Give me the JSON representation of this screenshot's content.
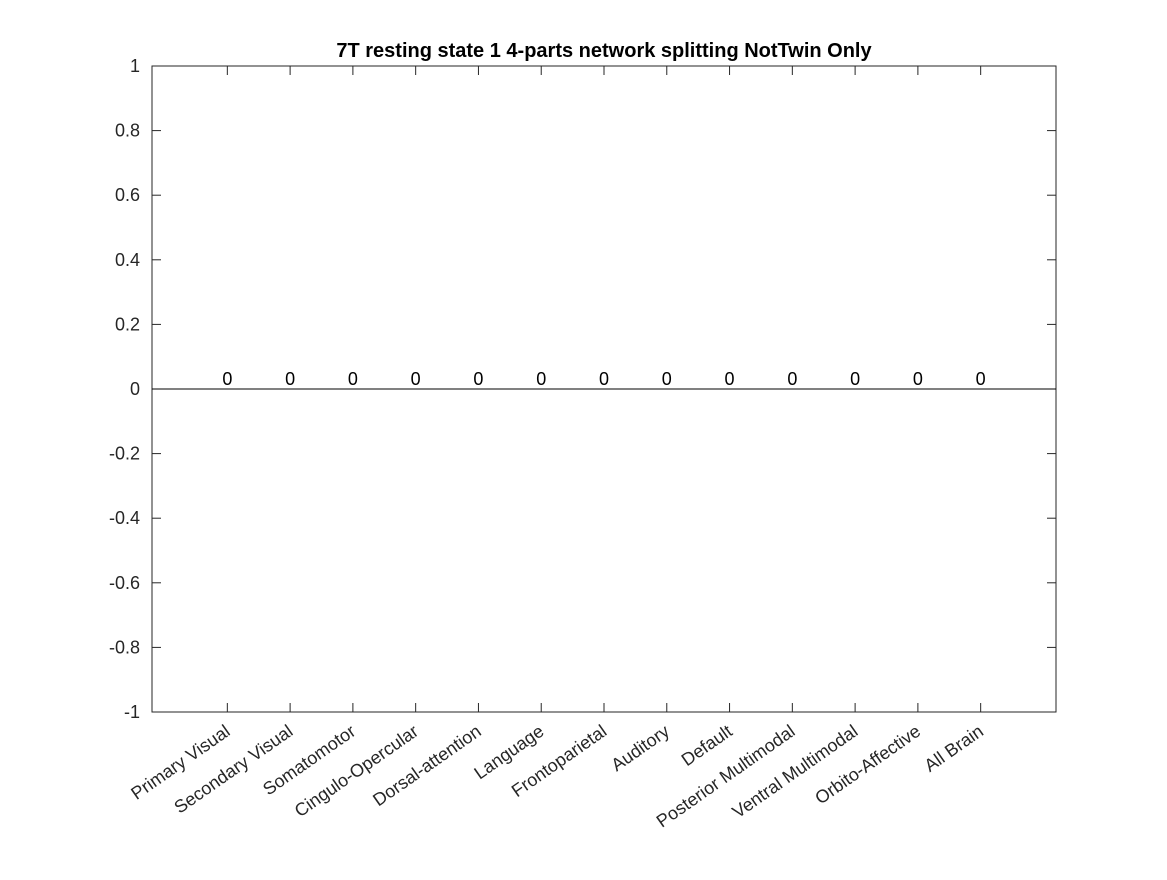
{
  "chart_data": {
    "type": "bar",
    "title": "7T resting state 1 4-parts network splitting NotTwin Only",
    "xlabel": "",
    "ylabel": "",
    "categories": [
      "Primary Visual",
      "Secondary Visual",
      "Somatomotor",
      "Cingulo-Opercular",
      "Dorsal-attention",
      "Language",
      "Frontoparietal",
      "Auditory",
      "Default",
      "Posterior Multimodal",
      "Ventral Multimodal",
      "Orbito-Affective",
      "All Brain"
    ],
    "values": [
      0,
      0,
      0,
      0,
      0,
      0,
      0,
      0,
      0,
      0,
      0,
      0,
      0
    ],
    "data_labels": [
      "0",
      "0",
      "0",
      "0",
      "0",
      "0",
      "0",
      "0",
      "0",
      "0",
      "0",
      "0",
      "0"
    ],
    "ylim": [
      -1,
      1
    ],
    "xlim": [
      -0.2,
      14.2
    ],
    "y_ticks": [
      -1,
      -0.8,
      -0.6,
      -0.4,
      -0.2,
      0,
      0.2,
      0.4,
      0.6,
      0.8,
      1
    ],
    "y_tick_labels": [
      "-1",
      "-0.8",
      "-0.6",
      "-0.4",
      "-0.2",
      "0",
      "0.2",
      "0.4",
      "0.6",
      "0.8",
      "1"
    ],
    "grid": false,
    "legend": "none",
    "colors": {
      "axis": "#262626",
      "bar": "#0072bd",
      "baseline": "#000000"
    }
  }
}
